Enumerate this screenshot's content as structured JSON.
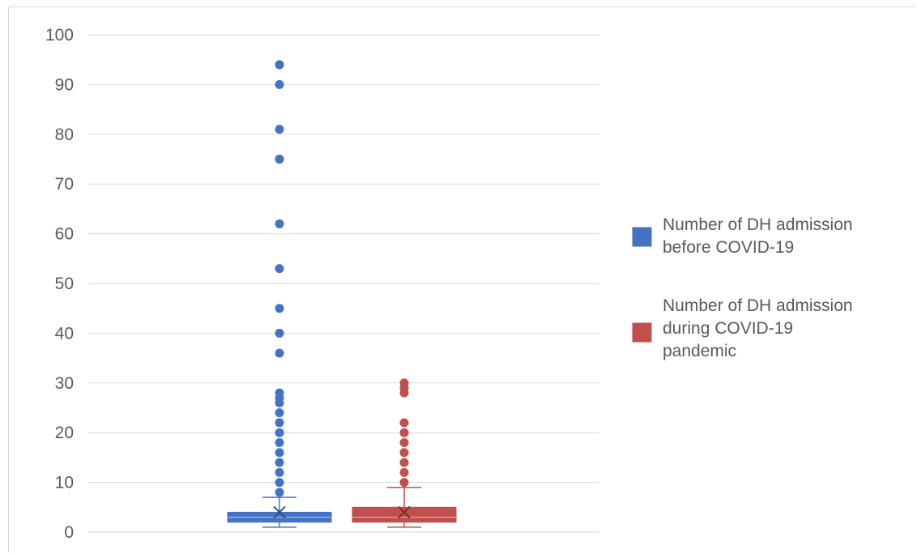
{
  "chart_data": {
    "type": "box",
    "title": "",
    "xlabel": "",
    "ylabel": "",
    "ylim": [
      0,
      100
    ],
    "yticks": [
      0,
      10,
      20,
      30,
      40,
      50,
      60,
      70,
      80,
      90,
      100
    ],
    "grid": true,
    "legend_position": "right",
    "series": [
      {
        "name": "Number of DH admission before COVID-19",
        "legend_lines": [
          "Number of DH admission",
          "before COVID-19"
        ],
        "color": "#4472c4",
        "box": {
          "whisker_low": 1,
          "q1": 2,
          "median": 3,
          "q3": 4,
          "whisker_high": 7,
          "mean": 4
        },
        "outliers": [
          8,
          10,
          12,
          14,
          16,
          18,
          20,
          22,
          24,
          26,
          27,
          28,
          36,
          40,
          45,
          53,
          62,
          75,
          75,
          81,
          90,
          94,
          94
        ]
      },
      {
        "name": "Number of DH admission during COVID-19 pandemic",
        "legend_lines": [
          "Number of DH admission",
          "during COVID-19",
          "pandemic"
        ],
        "color": "#c0504d",
        "box": {
          "whisker_low": 1,
          "q1": 2,
          "median": 3,
          "q3": 5,
          "whisker_high": 9,
          "mean": 4
        },
        "outliers": [
          10,
          12,
          14,
          16,
          18,
          20,
          22,
          28,
          29,
          30
        ]
      }
    ]
  }
}
